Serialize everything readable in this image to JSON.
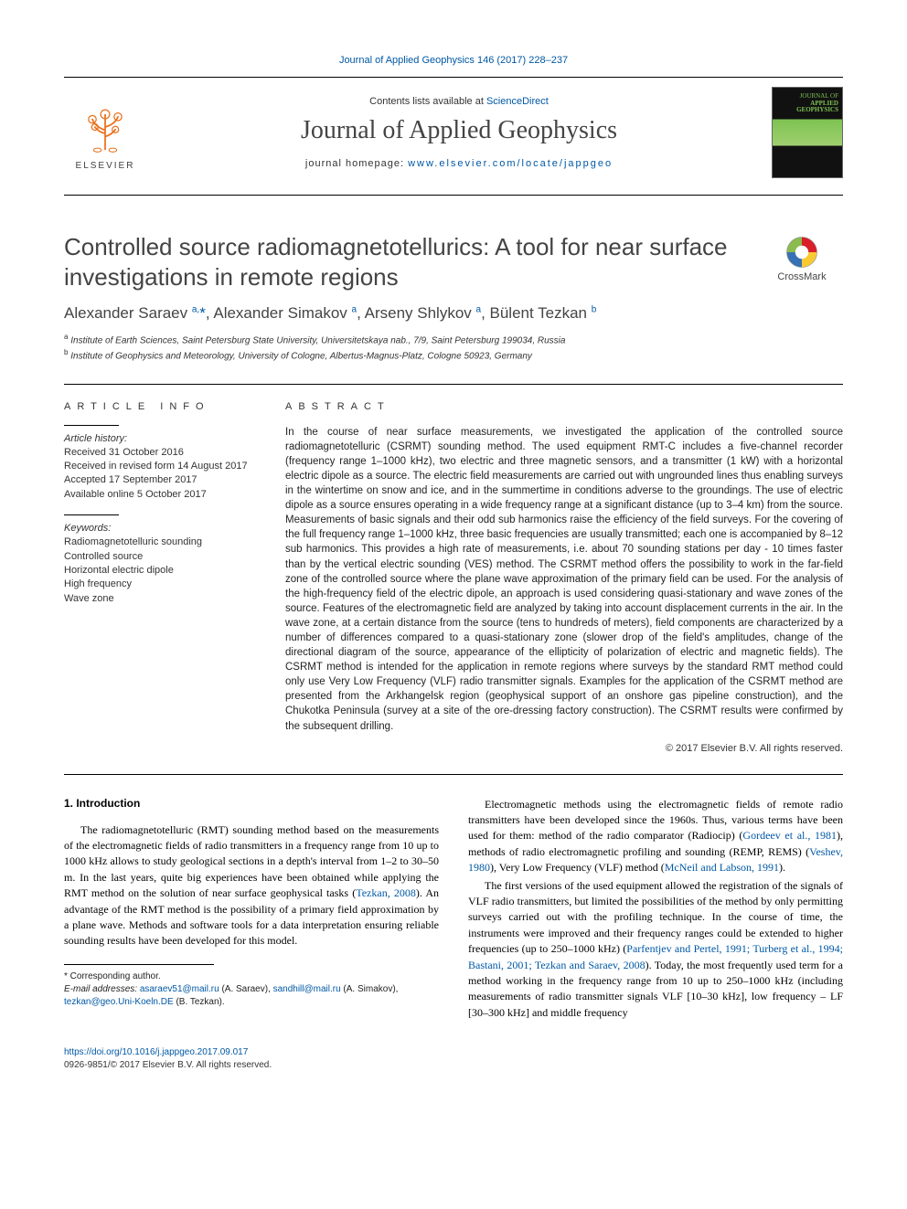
{
  "colors": {
    "link": "#0058a5",
    "text": "#000000",
    "muted": "#444444",
    "body_bg": "#ffffff"
  },
  "top_link": "Journal of Applied Geophysics 146 (2017) 228–237",
  "header": {
    "contents_prefix": "Contents lists available at ",
    "contents_link": "ScienceDirect",
    "journal_name": "Journal of Applied Geophysics",
    "homepage_prefix": "journal homepage: ",
    "homepage_url": "www.elsevier.com/locate/jappgeo",
    "publisher": "ELSEVIER",
    "cover_caption_small": "JOURNAL OF",
    "cover_caption": "APPLIED GEOPHYSICS"
  },
  "paper": {
    "title": "Controlled source radiomagnetotellurics: A tool for near surface investigations in remote regions",
    "crossmark_label": "CrossMark",
    "authors_html": "Alexander Saraev <sup>a,</sup><span class=\"star\">*</span>, Alexander Simakov <sup>a</sup>, Arseny Shlykov <sup>a</sup>, Bülent Tezkan <sup>b</sup>",
    "affiliations": [
      {
        "sup": "a",
        "text": "Institute of Earth Sciences, Saint Petersburg State University, Universitetskaya nab., 7/9, Saint Petersburg 199034, Russia"
      },
      {
        "sup": "b",
        "text": "Institute of Geophysics and Meteorology, University of Cologne, Albertus-Magnus-Platz, Cologne 50923, Germany"
      }
    ]
  },
  "article_info": {
    "heading": "ARTICLE INFO",
    "history_label": "Article history:",
    "history": [
      "Received 31 October 2016",
      "Received in revised form 14 August 2017",
      "Accepted 17 September 2017",
      "Available online 5 October 2017"
    ],
    "keywords_label": "Keywords:",
    "keywords": [
      "Radiomagnetotelluric sounding",
      "Controlled source",
      "Horizontal electric dipole",
      "High frequency",
      "Wave zone"
    ]
  },
  "abstract": {
    "heading": "ABSTRACT",
    "text": "In the course of near surface measurements, we investigated the application of the controlled source radiomagnetotelluric (CSRMT) sounding method. The used equipment RMT-C includes a five-channel recorder (frequency range 1–1000 kHz), two electric and three magnetic sensors, and a transmitter (1 kW) with a horizontal electric dipole as a source. The electric field measurements are carried out with ungrounded lines thus enabling surveys in the wintertime on snow and ice, and in the summertime in conditions adverse to the groundings. The use of electric dipole as a source ensures operating in a wide frequency range at a significant distance (up to 3–4 km) from the source. Measurements of basic signals and their odd sub harmonics raise the efficiency of the field surveys. For the covering of the full frequency range 1–1000 kHz, three basic frequencies are usually transmitted; each one is accompanied by 8–12 sub harmonics. This provides a high rate of measurements, i.e. about 70 sounding stations per day - 10 times faster than by the vertical electric sounding (VES) method. The CSRMT method offers the possibility to work in the far-field zone of the controlled source where the plane wave approximation of the primary field can be used. For the analysis of the high-frequency field of the electric dipole, an approach is used considering quasi-stationary and wave zones of the source. Features of the electromagnetic field are analyzed by taking into account displacement currents in the air. In the wave zone, at a certain distance from the source (tens to hundreds of meters), field components are characterized by a number of differences compared to a quasi-stationary zone (slower drop of the field's amplitudes, change of the directional diagram of the source, appearance of the ellipticity of polarization of electric and magnetic fields). The CSRMT method is intended for the application in remote regions where surveys by the standard RMT method could only use Very Low Frequency (VLF) radio transmitter signals. Examples for the application of the CSRMT method are presented from the Arkhangelsk region (geophysical support of an onshore gas pipeline construction), and the Chukotka Peninsula (survey at a site of the ore-dressing factory construction). The CSRMT results were confirmed by the subsequent drilling.",
    "copyright": "© 2017 Elsevier B.V. All rights reserved."
  },
  "body": {
    "intro_heading": "1. Introduction",
    "col1_p1_pre": "The radiomagnetotelluric (RMT) sounding method based on the measurements of the electromagnetic fields of radio transmitters in a frequency range from 10 up to 1000 kHz allows to study geological sections in a depth's interval from 1–2 to 30–50 m. In the last years, quite big experiences have been obtained while applying the RMT method on the solution of near surface geophysical tasks (",
    "col1_p1_link1": "Tezkan, 2008",
    "col1_p1_post": "). An advantage of the RMT method is the possibility of a primary field approximation by a plane wave. Methods and software tools for a data interpretation ensuring reliable sounding results have been developed for this model.",
    "col2_p1_a": "Electromagnetic methods using the electromagnetic fields of remote radio transmitters have been developed since the 1960s. Thus, various terms have been used for them: method of the radio comparator (Radiocip) (",
    "col2_p1_link1": "Gordeev et al., 1981",
    "col2_p1_b": "), methods of radio electromagnetic profiling and sounding (REMP, REMS) (",
    "col2_p1_link2": "Veshev, 1980",
    "col2_p1_c": "), Very Low Frequency (VLF) method (",
    "col2_p1_link3": "McNeil and Labson, 1991",
    "col2_p1_d": ").",
    "col2_p2_a": "The first versions of the used equipment allowed the registration of the signals of VLF radio transmitters, but limited the possibilities of the method by only permitting surveys carried out with the profiling technique. In the course of time, the instruments were improved and their frequency ranges could be extended to higher frequencies (up to 250–1000 kHz) (",
    "col2_p2_link1": "Parfentjev and Pertel, 1991; Turberg et al., 1994; Bastani, 2001; Tezkan and Saraev, 2008",
    "col2_p2_b": "). Today, the most frequently used term for a method working in the frequency range from 10 up to 250–1000 kHz (including measurements of radio transmitter signals VLF [10–30 kHz], low frequency – LF [30–300 kHz] and middle frequency"
  },
  "footnotes": {
    "corresponding": "* Corresponding author.",
    "emails_label": "E-mail addresses:",
    "emails": [
      {
        "addr": "asaraev51@mail.ru",
        "who": "(A. Saraev)"
      },
      {
        "addr": "sandhill@mail.ru",
        "who": "(A. Simakov)"
      },
      {
        "addr": "tezkan@geo.Uni-Koeln.DE",
        "who": "(B. Tezkan)."
      }
    ]
  },
  "footer": {
    "doi": "https://doi.org/10.1016/j.jappgeo.2017.09.017",
    "issn_line": "0926-9851/© 2017 Elsevier B.V. All rights reserved."
  }
}
